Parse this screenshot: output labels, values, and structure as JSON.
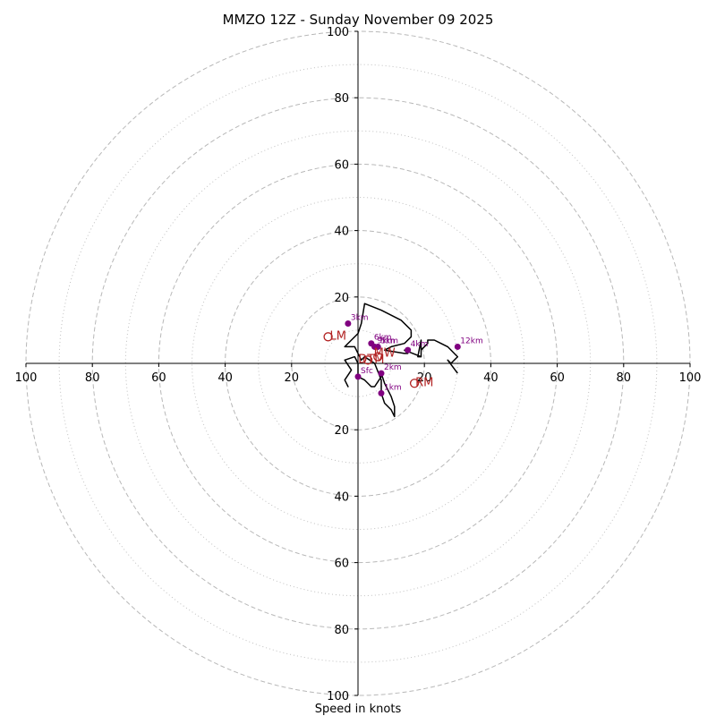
{
  "chart_data": {
    "type": "hodograph",
    "title": "MMZO 12Z - Sunday November 09 2025",
    "xlabel": "Speed in knots",
    "units": "knots",
    "max_speed": 100,
    "ring_major": [
      20,
      40,
      60,
      80,
      100
    ],
    "ring_minor": [
      10,
      30,
      50,
      70,
      90
    ],
    "axis_ticks": {
      "left": [
        "100",
        "80",
        "60",
        "40",
        "20"
      ],
      "right": [
        "20",
        "40",
        "60",
        "80",
        "100"
      ],
      "top": [
        "100",
        "80",
        "60",
        "40",
        "20"
      ],
      "bottom": [
        "20",
        "40",
        "60",
        "80",
        "100"
      ]
    },
    "trace": [
      [
        -2,
        -2
      ],
      [
        -4,
        -5
      ],
      [
        -3,
        -7
      ],
      [
        -4,
        -5
      ],
      [
        -2,
        -2
      ],
      [
        -4,
        1
      ],
      [
        -1,
        2
      ],
      [
        0,
        0
      ],
      [
        0,
        -4
      ],
      [
        2,
        -5
      ],
      [
        4,
        -7
      ],
      [
        5,
        -7
      ],
      [
        7,
        -4
      ],
      [
        7,
        -3
      ],
      [
        8,
        -6
      ],
      [
        10,
        -10
      ],
      [
        11,
        -13
      ],
      [
        11,
        -16
      ],
      [
        10,
        -14
      ],
      [
        8,
        -12
      ],
      [
        7,
        -9
      ],
      [
        7,
        -5
      ],
      [
        5,
        0
      ],
      [
        2,
        2
      ],
      [
        1,
        1
      ],
      [
        0,
        3
      ],
      [
        -1,
        5
      ],
      [
        -4,
        5
      ],
      [
        -2,
        7
      ],
      [
        0,
        9
      ],
      [
        1,
        12
      ],
      [
        2,
        18
      ],
      [
        7,
        16
      ],
      [
        13,
        13
      ],
      [
        16,
        10
      ],
      [
        16,
        8
      ],
      [
        14,
        6
      ],
      [
        10,
        5
      ],
      [
        8,
        4
      ],
      [
        14,
        3
      ],
      [
        15,
        3
      ],
      [
        14,
        4
      ],
      [
        19,
        2
      ],
      [
        19,
        5
      ],
      [
        19,
        7
      ],
      [
        18,
        2
      ],
      [
        19,
        2
      ],
      [
        19,
        4
      ],
      [
        21,
        6
      ],
      [
        21,
        7
      ],
      [
        22,
        7
      ],
      [
        23,
        7
      ],
      [
        27,
        5
      ],
      [
        29,
        3
      ],
      [
        30,
        2
      ],
      [
        28,
        0
      ],
      [
        27,
        1
      ],
      [
        30,
        -3
      ]
    ],
    "height_points": [
      {
        "label": "Sfc",
        "u": 0,
        "v": -4
      },
      {
        "label": "1km",
        "u": 7,
        "v": -9
      },
      {
        "label": "2km",
        "u": 7,
        "v": -3
      },
      {
        "label": "3km",
        "u": -3,
        "v": 12
      },
      {
        "label": "4km",
        "u": 15,
        "v": 4
      },
      {
        "label": "5km",
        "u": 6,
        "v": 5
      },
      {
        "label": "6km",
        "u": 4,
        "v": 6
      },
      {
        "label": "9km",
        "u": 5,
        "v": 5
      },
      {
        "label": "12km",
        "u": 30,
        "v": 5
      }
    ],
    "motion_markers": [
      {
        "label": "LM",
        "u": -9,
        "v": 8,
        "dx": 3,
        "dy": -2
      },
      {
        "label": "RM",
        "u": 17,
        "v": -6,
        "dx": 3,
        "dy": -2
      },
      {
        "label": "MW",
        "u": 6,
        "v": 2,
        "dx": 2,
        "dy": -1
      },
      {
        "label": "DTM",
        "u": 3,
        "v": 1,
        "dx": 1,
        "dy": -2
      }
    ]
  }
}
